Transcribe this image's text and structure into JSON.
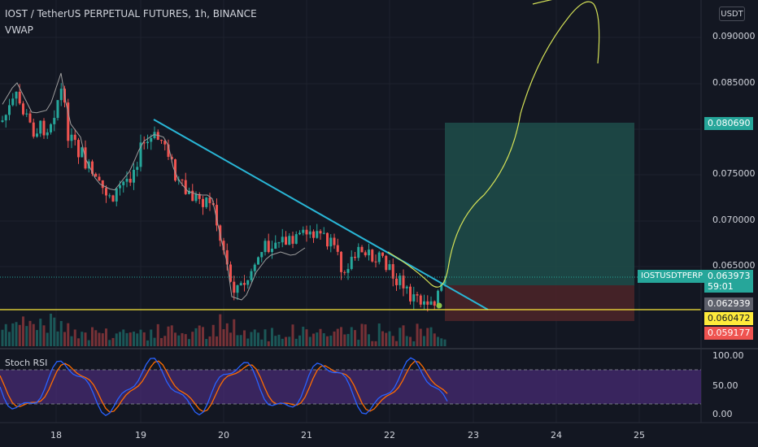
{
  "header": {
    "title": "IOST / TetherUS PERPETUAL FUTURES, 1h, BINANCE",
    "indicator": "VWAP"
  },
  "currency_button": "USDT",
  "price_axis": {
    "ticks": [
      "0.090000",
      "0.085000",
      "0.080690",
      "0.075000",
      "0.070000",
      "0.065000"
    ],
    "labels": {
      "target": "0.080690",
      "last": "0.063973",
      "countdown": "59:01",
      "level1": "0.062939",
      "level2": "0.060472",
      "stop": "0.059177"
    },
    "symbol_tag": "IOSTUSDTPERP"
  },
  "time_axis": {
    "ticks": [
      "18",
      "19",
      "20",
      "21",
      "22",
      "23",
      "24",
      "25"
    ]
  },
  "rsi": {
    "label": "Stoch RSI",
    "ticks": [
      "100.00",
      "50.00",
      "0.00"
    ]
  },
  "colors": {
    "background": "#131722",
    "up": "#26a69a",
    "down": "#ef5350",
    "trendline": "#29b6d6",
    "support": "#ffeb3b",
    "drawing": "#d4e157",
    "rsi_band": "#4a2c78",
    "rsi_k": "#2962ff",
    "rsi_d": "#ff6d00",
    "target_zone": "#1e4e4a",
    "stop_zone": "#4a2428"
  }
}
